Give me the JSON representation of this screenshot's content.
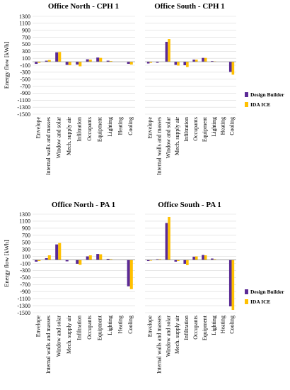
{
  "colors": {
    "design_builder": "#5b2a96",
    "ida_ice": "#ffc000"
  },
  "chart_data": [
    {
      "type": "bar",
      "title": "Office North - CPH 1",
      "ylabel": "Energy flow [kWh]",
      "ylim": [
        -1500,
        1300
      ],
      "yticks": [
        1300,
        1100,
        900,
        700,
        500,
        300,
        100,
        -100,
        -300,
        -500,
        -700,
        -900,
        -1100,
        -1300,
        -1500
      ],
      "categories": [
        "Envelope",
        "Internal walls and masses",
        "Window and solar",
        "Mech. supply air",
        "Infiltration",
        "Occupants",
        "Equipment",
        "Lighting",
        "Heating",
        "Cooling"
      ],
      "series": [
        {
          "name": "Design Builder",
          "values": [
            -60,
            30,
            270,
            -90,
            -80,
            70,
            120,
            30,
            0,
            -60
          ]
        },
        {
          "name": "IDA ICE",
          "values": [
            -30,
            50,
            280,
            -100,
            -130,
            60,
            110,
            20,
            0,
            -80
          ]
        }
      ],
      "legend": "none"
    },
    {
      "type": "bar",
      "title": "Office South - CPH 1",
      "ylim": [
        -1500,
        1300
      ],
      "categories": [
        "Envelope",
        "Internal walls and masses",
        "Window and solar",
        "Mech. supply air",
        "Infiltration",
        "Occupants",
        "Equipment",
        "Lighting",
        "Heating",
        "Cooling"
      ],
      "series": [
        {
          "name": "Design Builder",
          "values": [
            -50,
            -30,
            570,
            -90,
            -100,
            60,
            110,
            20,
            0,
            -290
          ]
        },
        {
          "name": "IDA ICE",
          "values": [
            -30,
            0,
            650,
            -110,
            -150,
            60,
            110,
            10,
            0,
            -370
          ]
        }
      ],
      "legend": "right"
    },
    {
      "type": "bar",
      "title": "Office North - PA 1",
      "ylabel": "Energy flow [kWh]",
      "ylim": [
        -1500,
        1300
      ],
      "yticks": [
        1300,
        1100,
        900,
        700,
        500,
        300,
        100,
        -100,
        -300,
        -500,
        -700,
        -900,
        -1100,
        -1300,
        -1500
      ],
      "categories": [
        "Envelope",
        "Internal walls and masses",
        "Window and solar",
        "Mech. supply air",
        "Infiltration",
        "Occupants",
        "Equipment",
        "Lighting",
        "Heating",
        "Cooling"
      ],
      "series": [
        {
          "name": "Design Builder",
          "values": [
            -50,
            50,
            440,
            -40,
            -110,
            100,
            170,
            30,
            0,
            -750
          ]
        },
        {
          "name": "IDA ICE",
          "values": [
            -30,
            130,
            480,
            0,
            -140,
            130,
            160,
            20,
            0,
            -830
          ]
        }
      ],
      "legend": "none"
    },
    {
      "type": "bar",
      "title": "Office South - PA 1",
      "ylim": [
        -1500,
        1300
      ],
      "categories": [
        "Envelope",
        "Internal walls and masses",
        "Window and solar",
        "Mech. supply air",
        "Infiltration",
        "Occupants",
        "Equipment",
        "Lighting",
        "Heating",
        "Cooling"
      ],
      "series": [
        {
          "name": "Design Builder",
          "values": [
            -30,
            20,
            1050,
            -50,
            -110,
            90,
            140,
            40,
            0,
            -1320
          ]
        },
        {
          "name": "IDA ICE",
          "values": [
            -20,
            20,
            1220,
            -30,
            -150,
            100,
            130,
            20,
            0,
            -1420
          ]
        }
      ],
      "legend": "right"
    }
  ]
}
